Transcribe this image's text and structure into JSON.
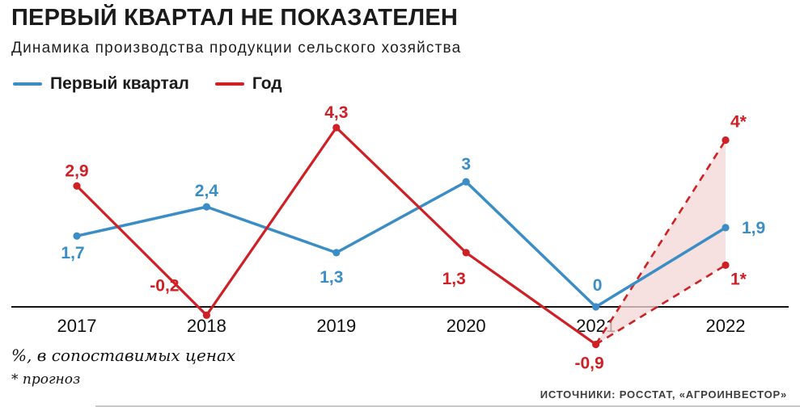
{
  "header": {
    "title": "ПЕРВЫЙ КВАРТАЛ НЕ ПОКАЗАТЕЛЕН",
    "subtitle": "Динамика производства продукции сельского хозяйства"
  },
  "legend": [
    {
      "label": "Первый квартал",
      "color": "#3a8dc5"
    },
    {
      "label": "Год",
      "color": "#cf2026"
    }
  ],
  "chart_data": {
    "type": "line",
    "title": "ПЕРВЫЙ КВАРТАЛ НЕ ПОКАЗАТЕЛЕН",
    "subtitle": "Динамика производства продукции сельского хозяйства",
    "categories": [
      "2017",
      "2018",
      "2019",
      "2020",
      "2021",
      "2022"
    ],
    "series": [
      {
        "name": "Первый квартал",
        "color": "#3a8dc5",
        "style": "solid",
        "values": [
          1.7,
          2.4,
          1.3,
          3,
          0,
          1.9
        ],
        "labels": [
          "1,7",
          "2,4",
          "1,3",
          "3",
          "0",
          "1,9"
        ]
      },
      {
        "name": "Год",
        "color": "#cf2026",
        "style": "solid",
        "values": [
          2.9,
          -0.2,
          4.3,
          1.3,
          -0.9,
          null
        ],
        "labels": [
          "2,9",
          "-0,2",
          "4,3",
          "1,3",
          "-0,9",
          ""
        ]
      }
    ],
    "forecast": {
      "series": "Год",
      "from_index": 4,
      "from_value": -0.9,
      "to_index": 5,
      "high": 4,
      "low": 1,
      "high_label": "4*",
      "low_label": "1*",
      "line_style": "dashed",
      "fill": "#f3d5d5"
    },
    "ylim": [
      -1.5,
      5
    ],
    "grid": false,
    "zero_axis": true,
    "legend_position": "top-left",
    "unit_note": "%, в сопоставимых ценах",
    "footnote": "* прогноз"
  },
  "footer": {
    "note1": "%, в сопоставимых ценах",
    "note2": "* прогноз",
    "source": "ИСТОЧНИКИ: РОССТАТ, «АГРОИНВЕСТОР»"
  }
}
